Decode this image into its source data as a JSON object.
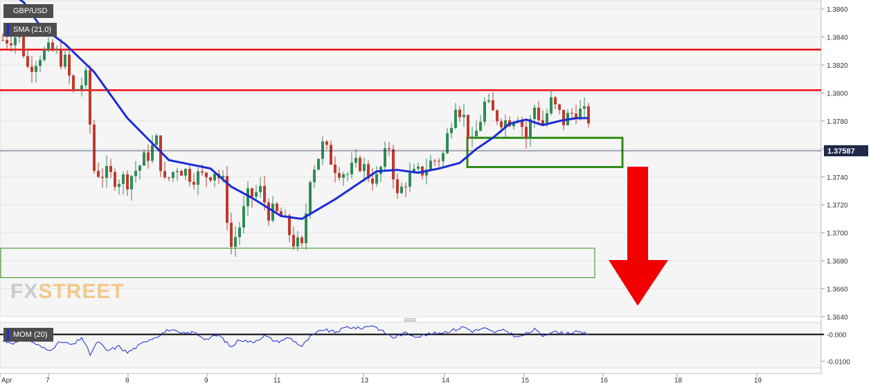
{
  "symbol_label": "GBP/USD",
  "sma_label": "SMA (21,0)",
  "mom_label": "MOM (20)",
  "logo": {
    "part1": "FX",
    "part2": "STREET"
  },
  "colors": {
    "up": "#2e8b57",
    "down": "#c0392b",
    "sma": "#1a2bd6",
    "resistance": "#f00a0a",
    "zone": "#2e8b14",
    "arrow": "#f20000",
    "price_tag": "#1f2a4a",
    "momentum": "#1a2bd6"
  },
  "chart_data": [
    {
      "type": "candlestick",
      "title": "GBP/USD",
      "timeframe_labels": [
        "Apr",
        "7",
        "8",
        "9",
        "11",
        "13",
        "14",
        "15",
        "16",
        "18",
        "19"
      ],
      "ylim": [
        1.364,
        1.3866
      ],
      "y_ticks": [
        "1.3860",
        "1.3840",
        "1.3820",
        "1.3800",
        "1.3780",
        "1.3760",
        "1.3740",
        "1.3720",
        "1.3700",
        "1.3680",
        "1.3660",
        "1.3640"
      ],
      "last_price": "1.37587",
      "grid": true,
      "resistance_levels": [
        1.3831,
        1.3802
      ],
      "support_zone": {
        "from": 1.3668,
        "to": 1.3689
      },
      "consolidation_box": {
        "from": 1.3751,
        "to": 1.3764
      },
      "projection": "down",
      "sma": {
        "name": "SMA (21,0)",
        "points": [
          [
            0,
            1.3875
          ],
          [
            5,
            1.3865
          ],
          [
            9,
            1.3848
          ],
          [
            15,
            1.3835
          ],
          [
            22,
            1.3815
          ],
          [
            30,
            1.3782
          ],
          [
            36,
            1.3764
          ],
          [
            40,
            1.3752
          ],
          [
            45,
            1.3749
          ],
          [
            50,
            1.3746
          ],
          [
            55,
            1.3733
          ],
          [
            60,
            1.3725
          ],
          [
            67,
            1.3712
          ],
          [
            72,
            1.371
          ],
          [
            76,
            1.3717
          ],
          [
            80,
            1.3724
          ],
          [
            85,
            1.3734
          ],
          [
            90,
            1.3744
          ],
          [
            95,
            1.3745
          ],
          [
            100,
            1.3743
          ],
          [
            105,
            1.3746
          ],
          [
            110,
            1.375
          ],
          [
            114,
            1.376
          ],
          [
            118,
            1.3768
          ],
          [
            122,
            1.3778
          ],
          [
            126,
            1.3781
          ],
          [
            130,
            1.3777
          ],
          [
            134,
            1.378
          ],
          [
            138,
            1.3782
          ],
          [
            141,
            1.3782
          ]
        ]
      },
      "candles_profile": [
        [
          0,
          1.3838
        ],
        [
          4,
          1.3842
        ],
        [
          6,
          1.3818
        ],
        [
          9,
          1.3828
        ],
        [
          12,
          1.383
        ],
        [
          15,
          1.3822
        ],
        [
          17,
          1.38
        ],
        [
          20,
          1.381
        ],
        [
          22,
          1.3745
        ],
        [
          26,
          1.374
        ],
        [
          30,
          1.3738
        ],
        [
          34,
          1.3752
        ],
        [
          37,
          1.3765
        ],
        [
          39,
          1.3735
        ],
        [
          42,
          1.3748
        ],
        [
          45,
          1.3742
        ],
        [
          48,
          1.374
        ],
        [
          51,
          1.3745
        ],
        [
          53,
          1.3735
        ],
        [
          55,
          1.369
        ],
        [
          57,
          1.3705
        ],
        [
          59,
          1.3725
        ],
        [
          62,
          1.373
        ],
        [
          64,
          1.3715
        ],
        [
          67,
          1.3712
        ],
        [
          70,
          1.3694
        ],
        [
          72,
          1.3688
        ],
        [
          74,
          1.3742
        ],
        [
          77,
          1.3762
        ],
        [
          80,
          1.3748
        ],
        [
          83,
          1.3742
        ],
        [
          86,
          1.375
        ],
        [
          88,
          1.3742
        ],
        [
          90,
          1.3738
        ],
        [
          93,
          1.3762
        ],
        [
          95,
          1.3725
        ],
        [
          97,
          1.3738
        ],
        [
          100,
          1.3742
        ],
        [
          103,
          1.375
        ],
        [
          106,
          1.3756
        ],
        [
          109,
          1.3795
        ],
        [
          111,
          1.3782
        ],
        [
          113,
          1.3762
        ],
        [
          116,
          1.3792
        ],
        [
          118,
          1.3785
        ],
        [
          121,
          1.378
        ],
        [
          124,
          1.3786
        ],
        [
          126,
          1.3768
        ],
        [
          128,
          1.379
        ],
        [
          130,
          1.3778
        ],
        [
          132,
          1.3793
        ],
        [
          135,
          1.378
        ],
        [
          138,
          1.3788
        ],
        [
          141,
          1.3782
        ]
      ]
    },
    {
      "type": "line",
      "title": "MOM (20)",
      "ylim": [
        -0.0125,
        0.0045
      ],
      "y_ticks": [
        "-0.000",
        "-0.0100"
      ],
      "zero_line": 0,
      "values_profile": [
        [
          0,
          -0.0025
        ],
        [
          3,
          -0.0032
        ],
        [
          6,
          -0.0018
        ],
        [
          9,
          -0.0045
        ],
        [
          11,
          -0.006
        ],
        [
          14,
          -0.0028
        ],
        [
          17,
          -0.004
        ],
        [
          19,
          -0.001
        ],
        [
          21,
          -0.0075
        ],
        [
          23,
          -0.0025
        ],
        [
          25,
          -0.0062
        ],
        [
          28,
          -0.0045
        ],
        [
          30,
          -0.0068
        ],
        [
          33,
          -0.004
        ],
        [
          35,
          -0.002
        ],
        [
          37,
          -0.0008
        ],
        [
          40,
          0.0018
        ],
        [
          43,
          0.0002
        ],
        [
          46,
          0.0008
        ],
        [
          49,
          -0.0018
        ],
        [
          52,
          -0.0002
        ],
        [
          55,
          -0.0048
        ],
        [
          57,
          -0.0018
        ],
        [
          60,
          -0.003
        ],
        [
          63,
          -0.0005
        ],
        [
          66,
          -0.0028
        ],
        [
          69,
          -0.0012
        ],
        [
          72,
          -0.0045
        ],
        [
          74,
          -0.001
        ],
        [
          77,
          0.0018
        ],
        [
          80,
          0.0008
        ],
        [
          83,
          0.0028
        ],
        [
          86,
          0.0022
        ],
        [
          89,
          0.0035
        ],
        [
          91,
          0.0015
        ],
        [
          94,
          -0.0012
        ],
        [
          97,
          0.0005
        ],
        [
          100,
          -0.0008
        ],
        [
          103,
          0.0002
        ],
        [
          106,
          0.0008
        ],
        [
          109,
          0.0018
        ],
        [
          111,
          0.0028
        ],
        [
          113,
          0.0012
        ],
        [
          116,
          0.0022
        ],
        [
          118,
          0.0008
        ],
        [
          121,
          0.0015
        ],
        [
          124,
          -0.0012
        ],
        [
          126,
          0.0002
        ],
        [
          128,
          0.0018
        ],
        [
          130,
          -0.0005
        ],
        [
          132,
          0.001
        ],
        [
          135,
          0.0005
        ],
        [
          138,
          0.0008
        ],
        [
          141,
          0.0002
        ]
      ]
    }
  ]
}
